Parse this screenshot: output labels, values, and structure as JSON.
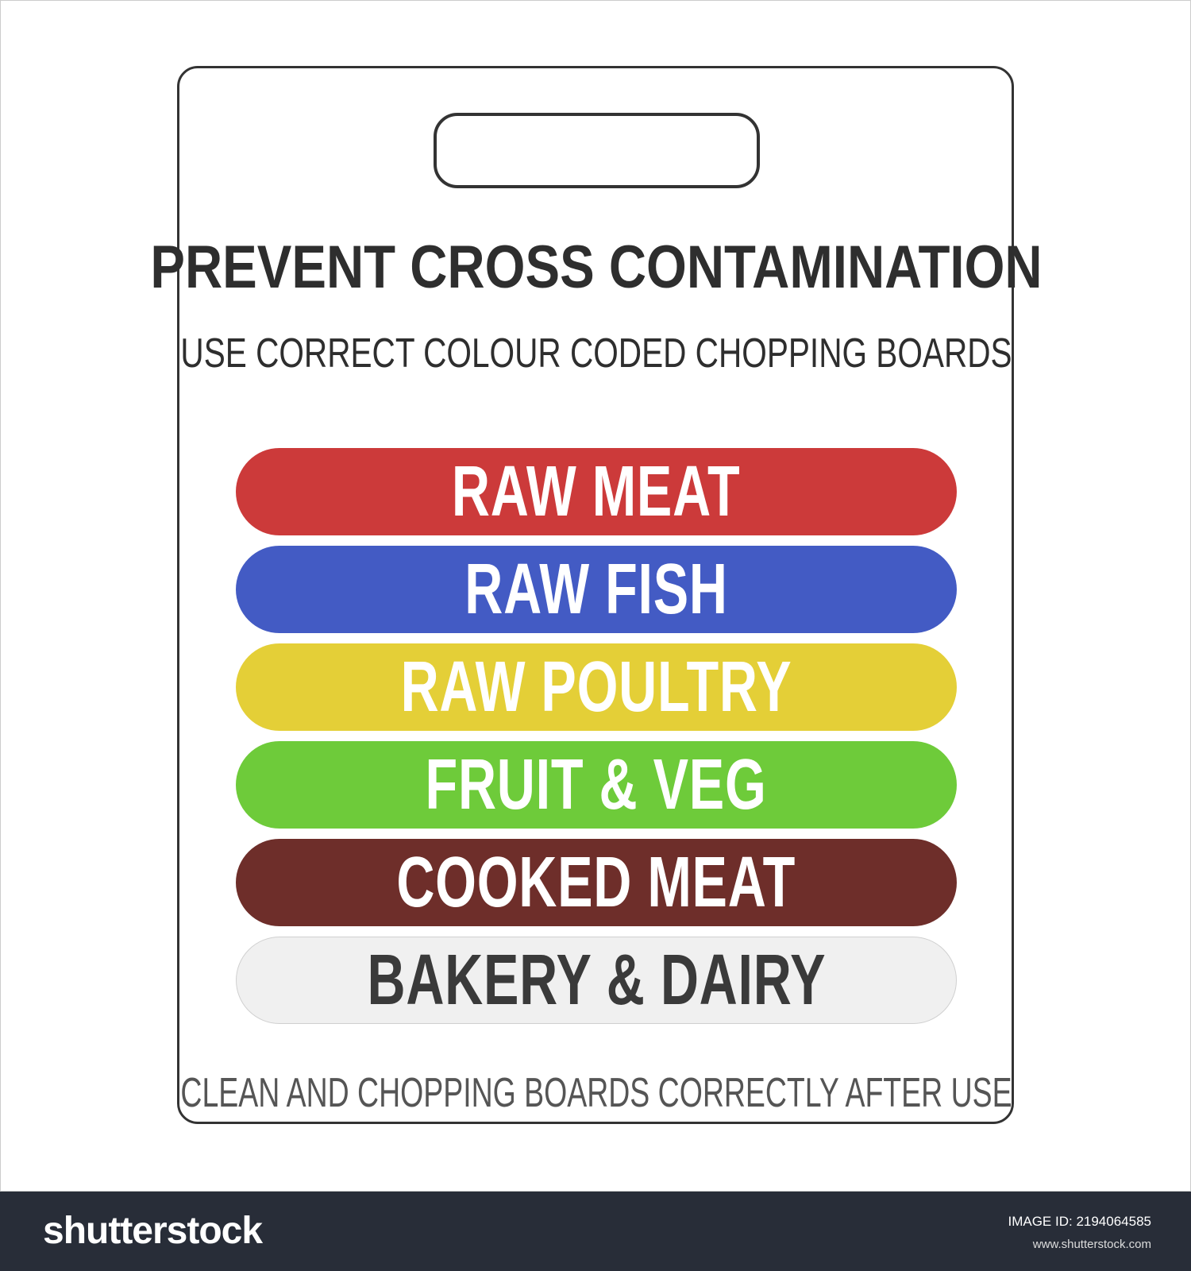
{
  "poster": {
    "title": "PREVENT CROSS CONTAMINATION",
    "subtitle": "USE CORRECT COLOUR CODED CHOPPING BOARDS",
    "bands": [
      {
        "label": "RAW MEAT",
        "color": "#cc3a3a"
      },
      {
        "label": "RAW FISH",
        "color": "#435bc4"
      },
      {
        "label": "RAW POULTRY",
        "color": "#e4cf37"
      },
      {
        "label": "FRUIT & VEG",
        "color": "#6ecb3a"
      },
      {
        "label": "COOKED MEAT",
        "color": "#6e2e2a"
      },
      {
        "label": "BAKERY & DAIRY",
        "color": "#f0f0f0"
      }
    ],
    "footer": "CLEAN AND CHOPPING BOARDS CORRECTLY AFTER USE"
  },
  "stock_bar": {
    "logo": "shutterstock",
    "image_id": "IMAGE ID: 2194064585",
    "site": "www.shutterstock.com"
  }
}
